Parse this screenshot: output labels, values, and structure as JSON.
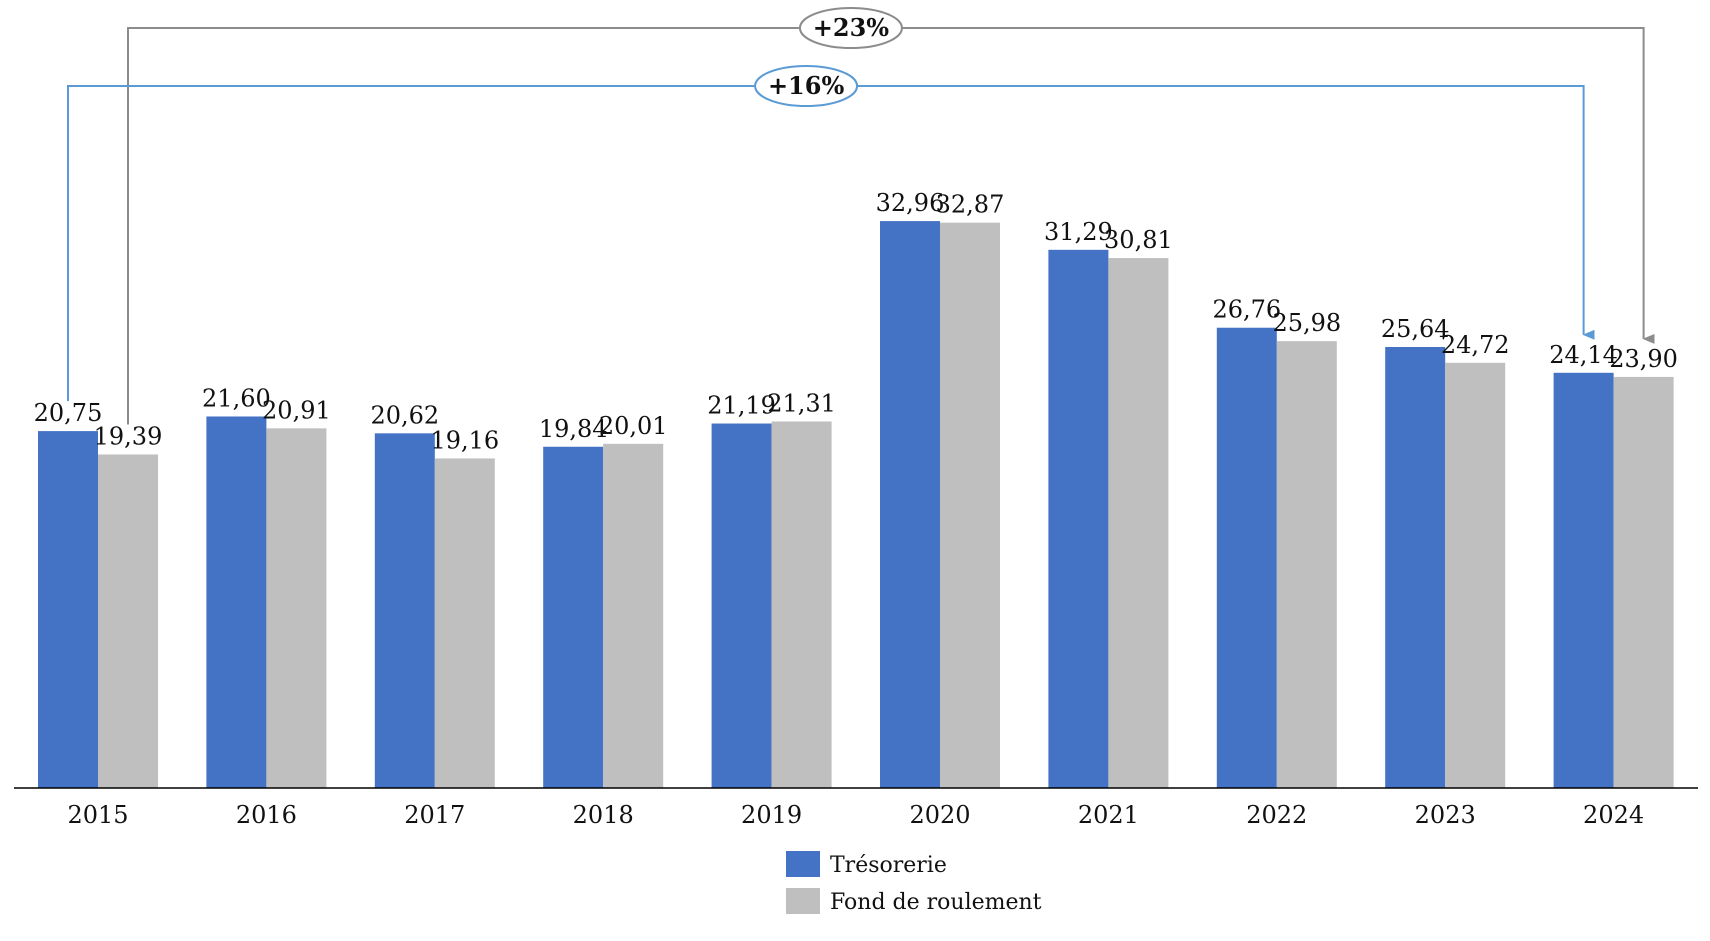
{
  "chart_data": {
    "type": "bar",
    "title": "",
    "xlabel": "",
    "ylabel": "",
    "ylim": [
      0,
      36
    ],
    "grid": false,
    "legend_position": "bottom-center",
    "categories": [
      "2015",
      "2016",
      "2017",
      "2018",
      "2019",
      "2020",
      "2021",
      "2022",
      "2023",
      "2024"
    ],
    "series": [
      {
        "name": "Trésorerie",
        "color": "#4472C4",
        "values": [
          20.75,
          21.6,
          20.62,
          19.84,
          21.19,
          32.96,
          31.29,
          26.76,
          25.64,
          24.14
        ],
        "labels": [
          "20,75",
          "21,60",
          "20,62",
          "19,84",
          "21,19",
          "32,96",
          "31,29",
          "26,76",
          "25,64",
          "24,14"
        ]
      },
      {
        "name": "Fond de roulement",
        "color": "#BFBFBF",
        "values": [
          19.39,
          20.91,
          19.16,
          20.01,
          21.31,
          32.87,
          30.81,
          25.98,
          24.72,
          23.9
        ],
        "labels": [
          "19,39",
          "20,91",
          "19,16",
          "20,01",
          "21,31",
          "32,87",
          "30,81",
          "25,98",
          "24,72",
          "23,90"
        ]
      }
    ],
    "annotations": [
      {
        "text": "+23%",
        "from": "2015",
        "to": "2024",
        "series": "Fond de roulement",
        "color": "#8C8C8C",
        "level": "outer"
      },
      {
        "text": "+16%",
        "from": "2015",
        "to": "2024",
        "series": "Trésorerie",
        "color": "#5B9BD5",
        "level": "inner"
      }
    ]
  }
}
